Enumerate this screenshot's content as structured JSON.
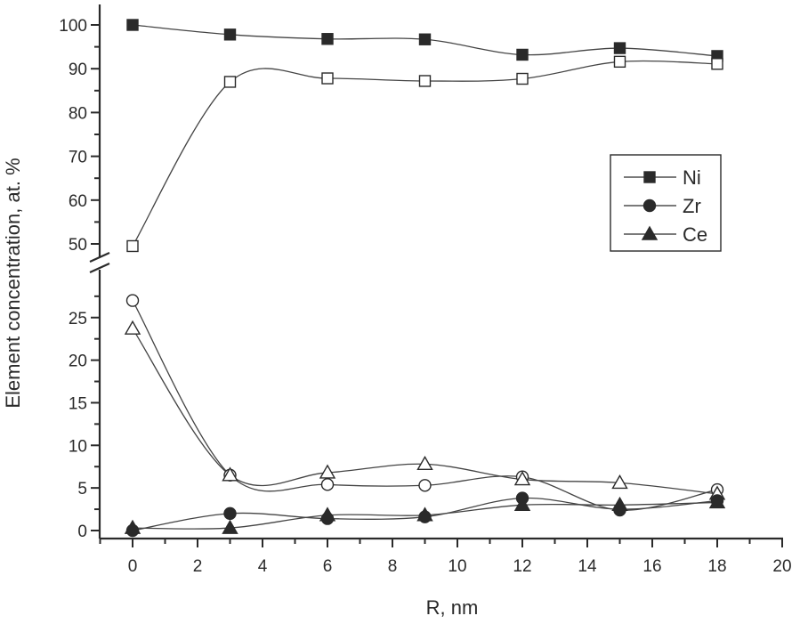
{
  "chart_data": {
    "type": "line",
    "title": "",
    "xlabel": "R, nm",
    "ylabel": "Element concentration, at. %",
    "xlim": [
      -1,
      20
    ],
    "x_ticks": [
      0,
      2,
      4,
      6,
      8,
      10,
      12,
      14,
      16,
      18,
      20
    ],
    "y_axis_break": true,
    "ylim_upper": [
      45,
      105
    ],
    "ylim_lower": [
      -2,
      28
    ],
    "y_ticks_upper": [
      50,
      60,
      70,
      80,
      90,
      100
    ],
    "y_ticks_lower": [
      0,
      5,
      10,
      15,
      20,
      25
    ],
    "grid": false,
    "legend_position": "upper right (inside, mid-height)",
    "legend": [
      {
        "label": "Ni",
        "marker": "square"
      },
      {
        "label": "Zr",
        "marker": "circle"
      },
      {
        "label": "Ce",
        "marker": "triangle"
      }
    ],
    "x": [
      0,
      3,
      6,
      9,
      12,
      15,
      18
    ],
    "series": [
      {
        "name": "Ni (filled)",
        "element": "Ni",
        "marker": "square",
        "filled": true,
        "panel": "upper",
        "values": [
          100,
          97.8,
          96.8,
          96.7,
          93.2,
          94.7,
          92.9
        ]
      },
      {
        "name": "Ni (open)",
        "element": "Ni",
        "marker": "square",
        "filled": false,
        "panel": "upper",
        "values": [
          49.5,
          87.0,
          87.8,
          87.2,
          87.7,
          91.6,
          91.1
        ]
      },
      {
        "name": "Zr (open)",
        "element": "Zr",
        "marker": "circle",
        "filled": false,
        "panel": "lower",
        "values": [
          27.0,
          6.5,
          5.4,
          5.3,
          6.3,
          2.4,
          4.8
        ]
      },
      {
        "name": "Ce (open)",
        "element": "Ce",
        "marker": "triangle",
        "filled": false,
        "panel": "lower",
        "values": [
          23.7,
          6.5,
          6.8,
          7.8,
          6.0,
          5.6,
          4.3
        ]
      },
      {
        "name": "Zr (filled)",
        "element": "Zr",
        "marker": "circle",
        "filled": true,
        "panel": "lower",
        "values": [
          0.0,
          2.0,
          1.4,
          1.6,
          3.8,
          2.5,
          3.5
        ]
      },
      {
        "name": "Ce (filled)",
        "element": "Ce",
        "marker": "triangle",
        "filled": true,
        "panel": "lower",
        "values": [
          0.3,
          0.3,
          1.8,
          1.8,
          3.0,
          3.0,
          3.3
        ]
      }
    ]
  },
  "colors": {
    "ink": "#2a2a2a",
    "curve": "#444444",
    "background": "#ffffff"
  }
}
